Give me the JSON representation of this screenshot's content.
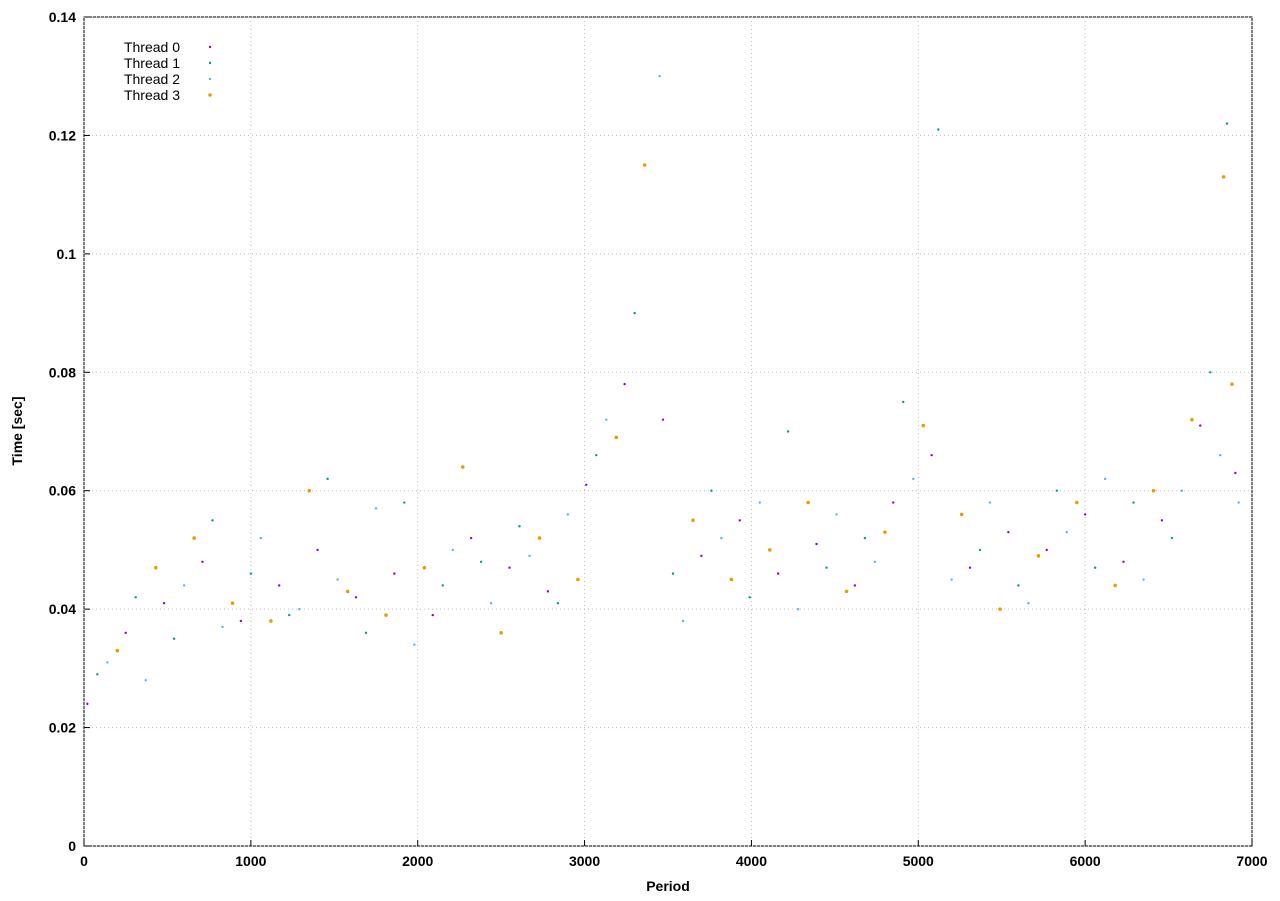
{
  "chart_data": {
    "type": "scatter",
    "x_label": "Period",
    "y_label": "Time [sec]",
    "xlim": [
      0,
      7000
    ],
    "xticks": [
      0,
      1000,
      2000,
      3000,
      4000,
      5000,
      6000,
      7000
    ],
    "ylim": [
      0,
      0.14
    ],
    "yticks": [
      0,
      0.02,
      0.04,
      0.06,
      0.08,
      0.1,
      0.12,
      0.14
    ],
    "grid": true,
    "legend": "top-left",
    "series": [
      {
        "name": "Thread 0",
        "color": "#9400d3",
        "x": [
          20,
          250,
          480,
          710,
          940,
          1170,
          1400,
          1630,
          1860,
          2090,
          2320,
          2550,
          2780,
          3010,
          3240,
          3470,
          3700,
          3930,
          4160,
          4390,
          4620,
          4850,
          5080,
          5310,
          5540,
          5770,
          6000,
          6230,
          6460,
          6690,
          6900
        ],
        "values": [
          0.024,
          0.036,
          0.041,
          0.048,
          0.038,
          0.044,
          0.05,
          0.042,
          0.046,
          0.039,
          0.052,
          0.047,
          0.043,
          0.061,
          0.078,
          0.072,
          0.049,
          0.055,
          0.046,
          0.051,
          0.044,
          0.058,
          0.066,
          0.047,
          0.053,
          0.05,
          0.056,
          0.048,
          0.055,
          0.071,
          0.063
        ]
      },
      {
        "name": "Thread 1",
        "color": "#009e73",
        "x": [
          80,
          310,
          540,
          770,
          1000,
          1230,
          1460,
          1690,
          1920,
          2150,
          2380,
          2610,
          2840,
          3070,
          3300,
          3530,
          3760,
          3990,
          4220,
          4450,
          4680,
          4910,
          5120,
          5370,
          5600,
          5830,
          6060,
          6290,
          6520,
          6750,
          6850
        ],
        "values": [
          0.029,
          0.042,
          0.035,
          0.055,
          0.046,
          0.039,
          0.062,
          0.036,
          0.058,
          0.044,
          0.048,
          0.054,
          0.041,
          0.066,
          0.09,
          0.046,
          0.06,
          0.042,
          0.07,
          0.047,
          0.052,
          0.075,
          0.121,
          0.05,
          0.044,
          0.06,
          0.047,
          0.058,
          0.052,
          0.08,
          0.122
        ]
      },
      {
        "name": "Thread 2",
        "color": "#56b4e9",
        "x": [
          140,
          370,
          600,
          830,
          1060,
          1290,
          1520,
          1750,
          1980,
          2210,
          2440,
          2670,
          2900,
          3130,
          3450,
          3590,
          3820,
          4050,
          4280,
          4510,
          4740,
          4970,
          5200,
          5430,
          5660,
          5890,
          6120,
          6350,
          6580,
          6810,
          6920
        ],
        "values": [
          0.031,
          0.028,
          0.044,
          0.037,
          0.052,
          0.04,
          0.045,
          0.057,
          0.034,
          0.05,
          0.041,
          0.049,
          0.056,
          0.072,
          0.13,
          0.038,
          0.052,
          0.058,
          0.04,
          0.056,
          0.048,
          0.062,
          0.045,
          0.058,
          0.041,
          0.053,
          0.062,
          0.045,
          0.06,
          0.066,
          0.058
        ]
      },
      {
        "name": "Thread 3",
        "color": "#e69f00",
        "x": [
          200,
          430,
          660,
          890,
          1120,
          1350,
          1580,
          1810,
          2040,
          2270,
          2500,
          2730,
          2960,
          3190,
          3360,
          3650,
          3880,
          4110,
          4340,
          4570,
          4800,
          5030,
          5260,
          5490,
          5720,
          5950,
          6180,
          6410,
          6640,
          6830,
          6880
        ],
        "values": [
          0.033,
          0.047,
          0.052,
          0.041,
          0.038,
          0.06,
          0.043,
          0.039,
          0.047,
          0.064,
          0.036,
          0.052,
          0.045,
          0.069,
          0.115,
          0.055,
          0.045,
          0.05,
          0.058,
          0.043,
          0.053,
          0.071,
          0.056,
          0.04,
          0.049,
          0.058,
          0.044,
          0.06,
          0.072,
          0.113,
          0.078
        ]
      }
    ]
  }
}
